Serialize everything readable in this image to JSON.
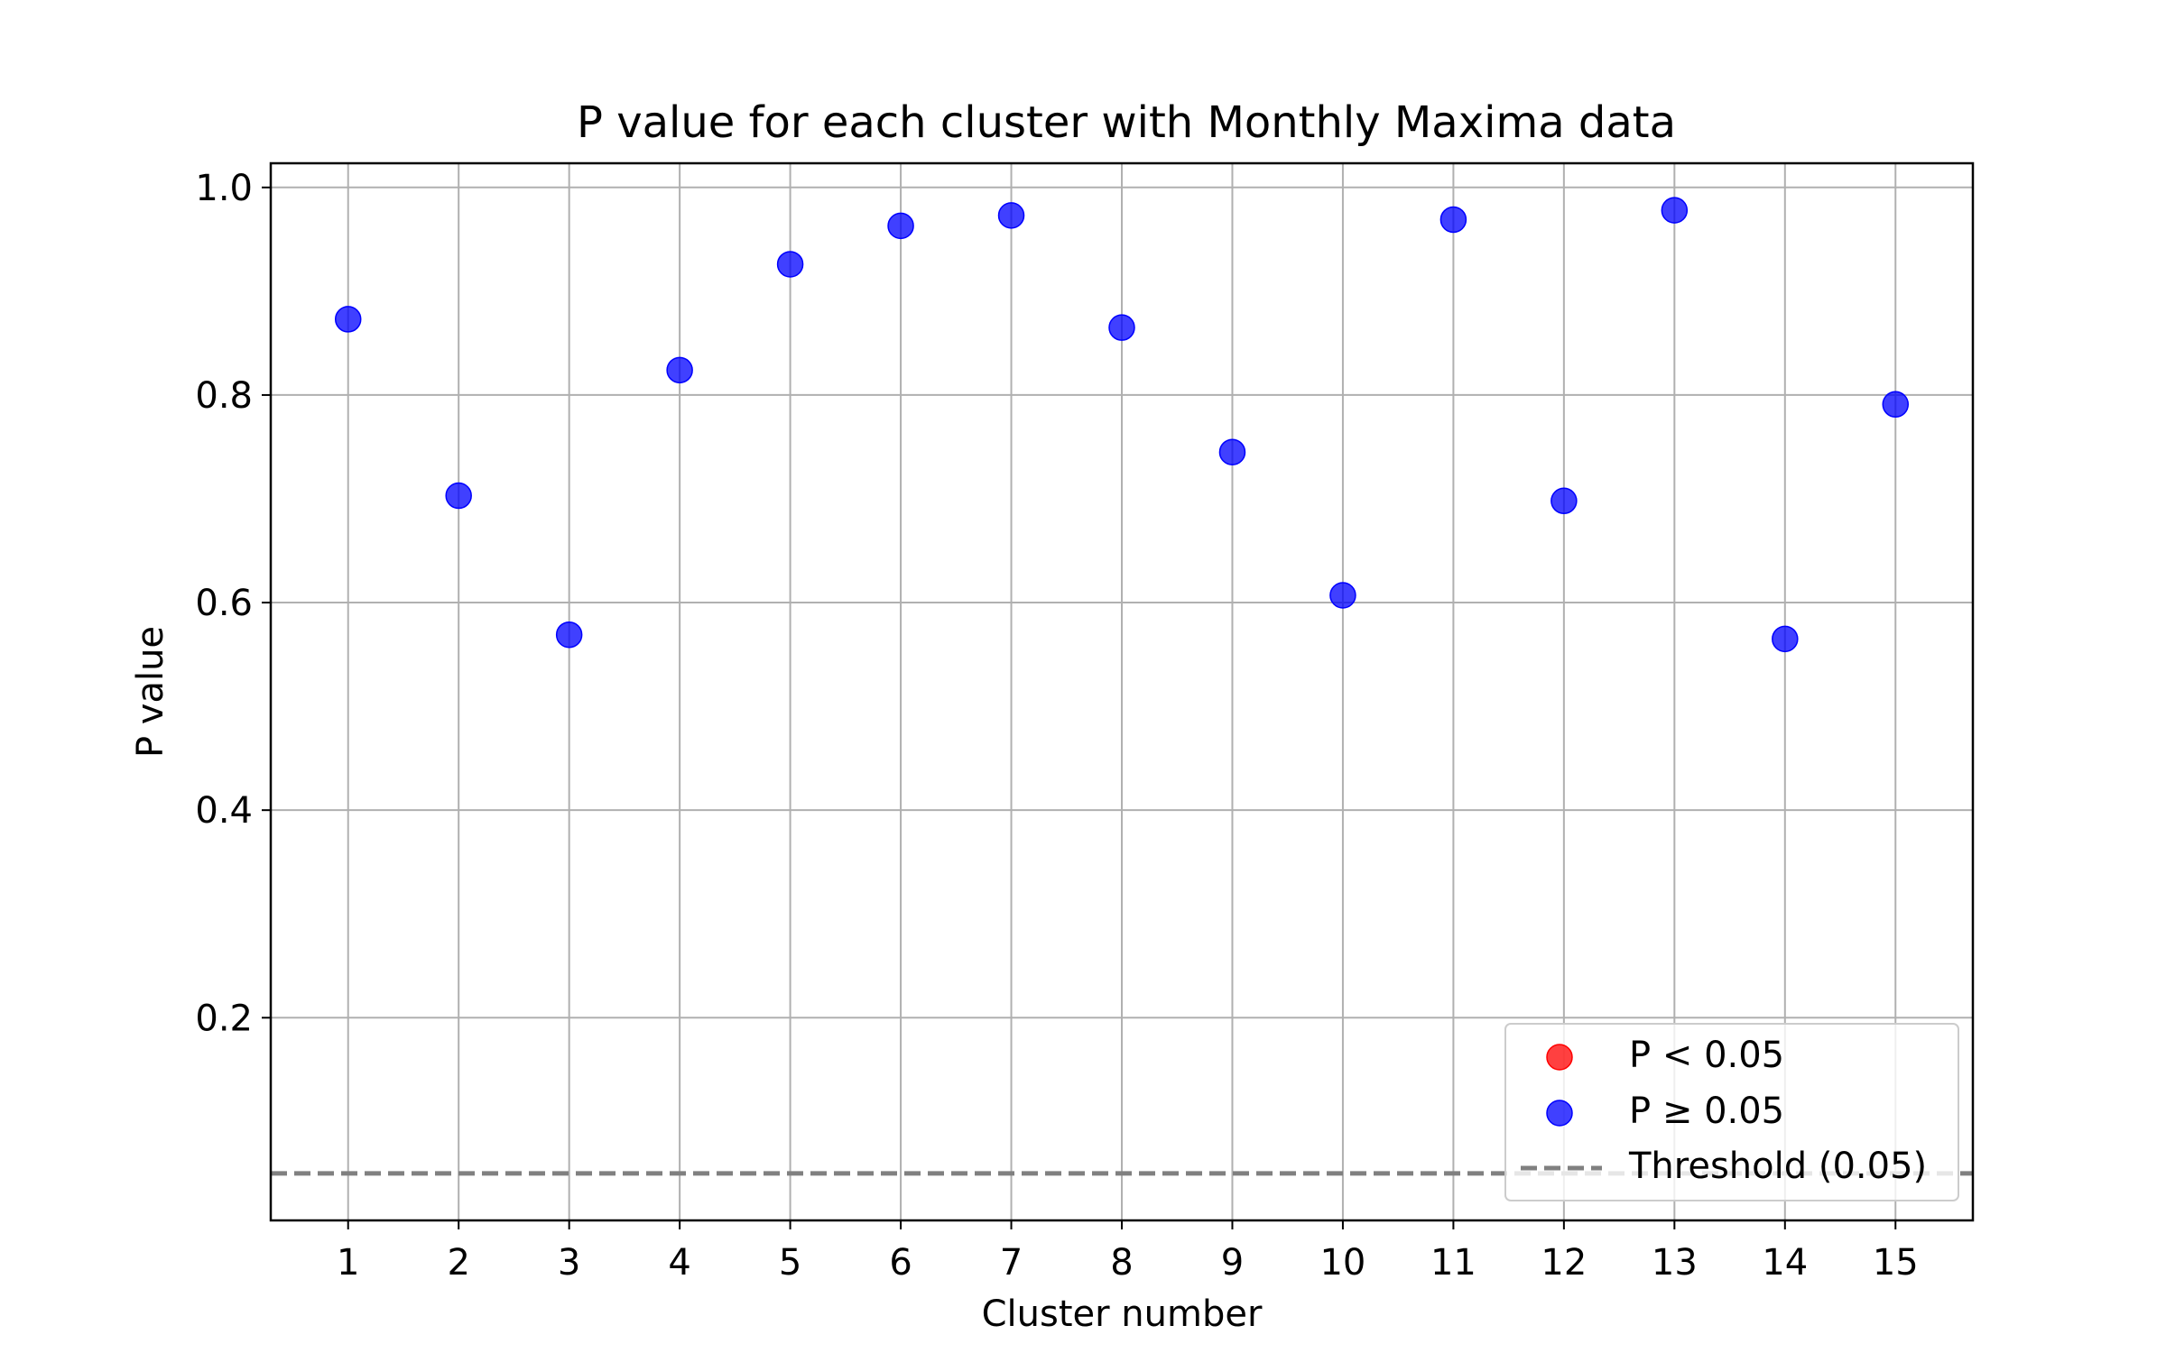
{
  "chart_data": {
    "type": "scatter",
    "title": "P value for each cluster with Monthly Maxima data",
    "xlabel": "Cluster number",
    "ylabel": "P value",
    "xlim": [
      0.3,
      15.7
    ],
    "ylim": [
      0.0047,
      1.0233
    ],
    "grid": true,
    "x_ticks": [
      1,
      2,
      3,
      4,
      5,
      6,
      7,
      8,
      9,
      10,
      11,
      12,
      13,
      14,
      15
    ],
    "x_tick_labels": [
      "1",
      "2",
      "3",
      "4",
      "5",
      "6",
      "7",
      "8",
      "9",
      "10",
      "11",
      "12",
      "13",
      "14",
      "15"
    ],
    "y_ticks": [
      0.2,
      0.4,
      0.6,
      0.8,
      1.0
    ],
    "y_tick_labels": [
      "0.2",
      "0.4",
      "0.6",
      "0.8",
      "1.0"
    ],
    "threshold": 0.05,
    "series": [
      {
        "name": "P < 0.05",
        "color": "#ff0000",
        "x": [],
        "y": []
      },
      {
        "name": "P ≥ 0.05",
        "color": "#0000ff",
        "x": [
          1,
          2,
          3,
          4,
          5,
          6,
          7,
          8,
          9,
          10,
          11,
          12,
          13,
          14,
          15
        ],
        "y": [
          0.873,
          0.703,
          0.569,
          0.824,
          0.926,
          0.963,
          0.973,
          0.865,
          0.745,
          0.607,
          0.969,
          0.698,
          0.978,
          0.565,
          0.791
        ]
      }
    ],
    "threshold_line": {
      "name": "Threshold (0.05)",
      "color": "#808080",
      "style": "dashed"
    },
    "legend": {
      "position": "lower-right",
      "entries": [
        "P < 0.05",
        "P ≥ 0.05",
        "Threshold (0.05)"
      ]
    }
  }
}
